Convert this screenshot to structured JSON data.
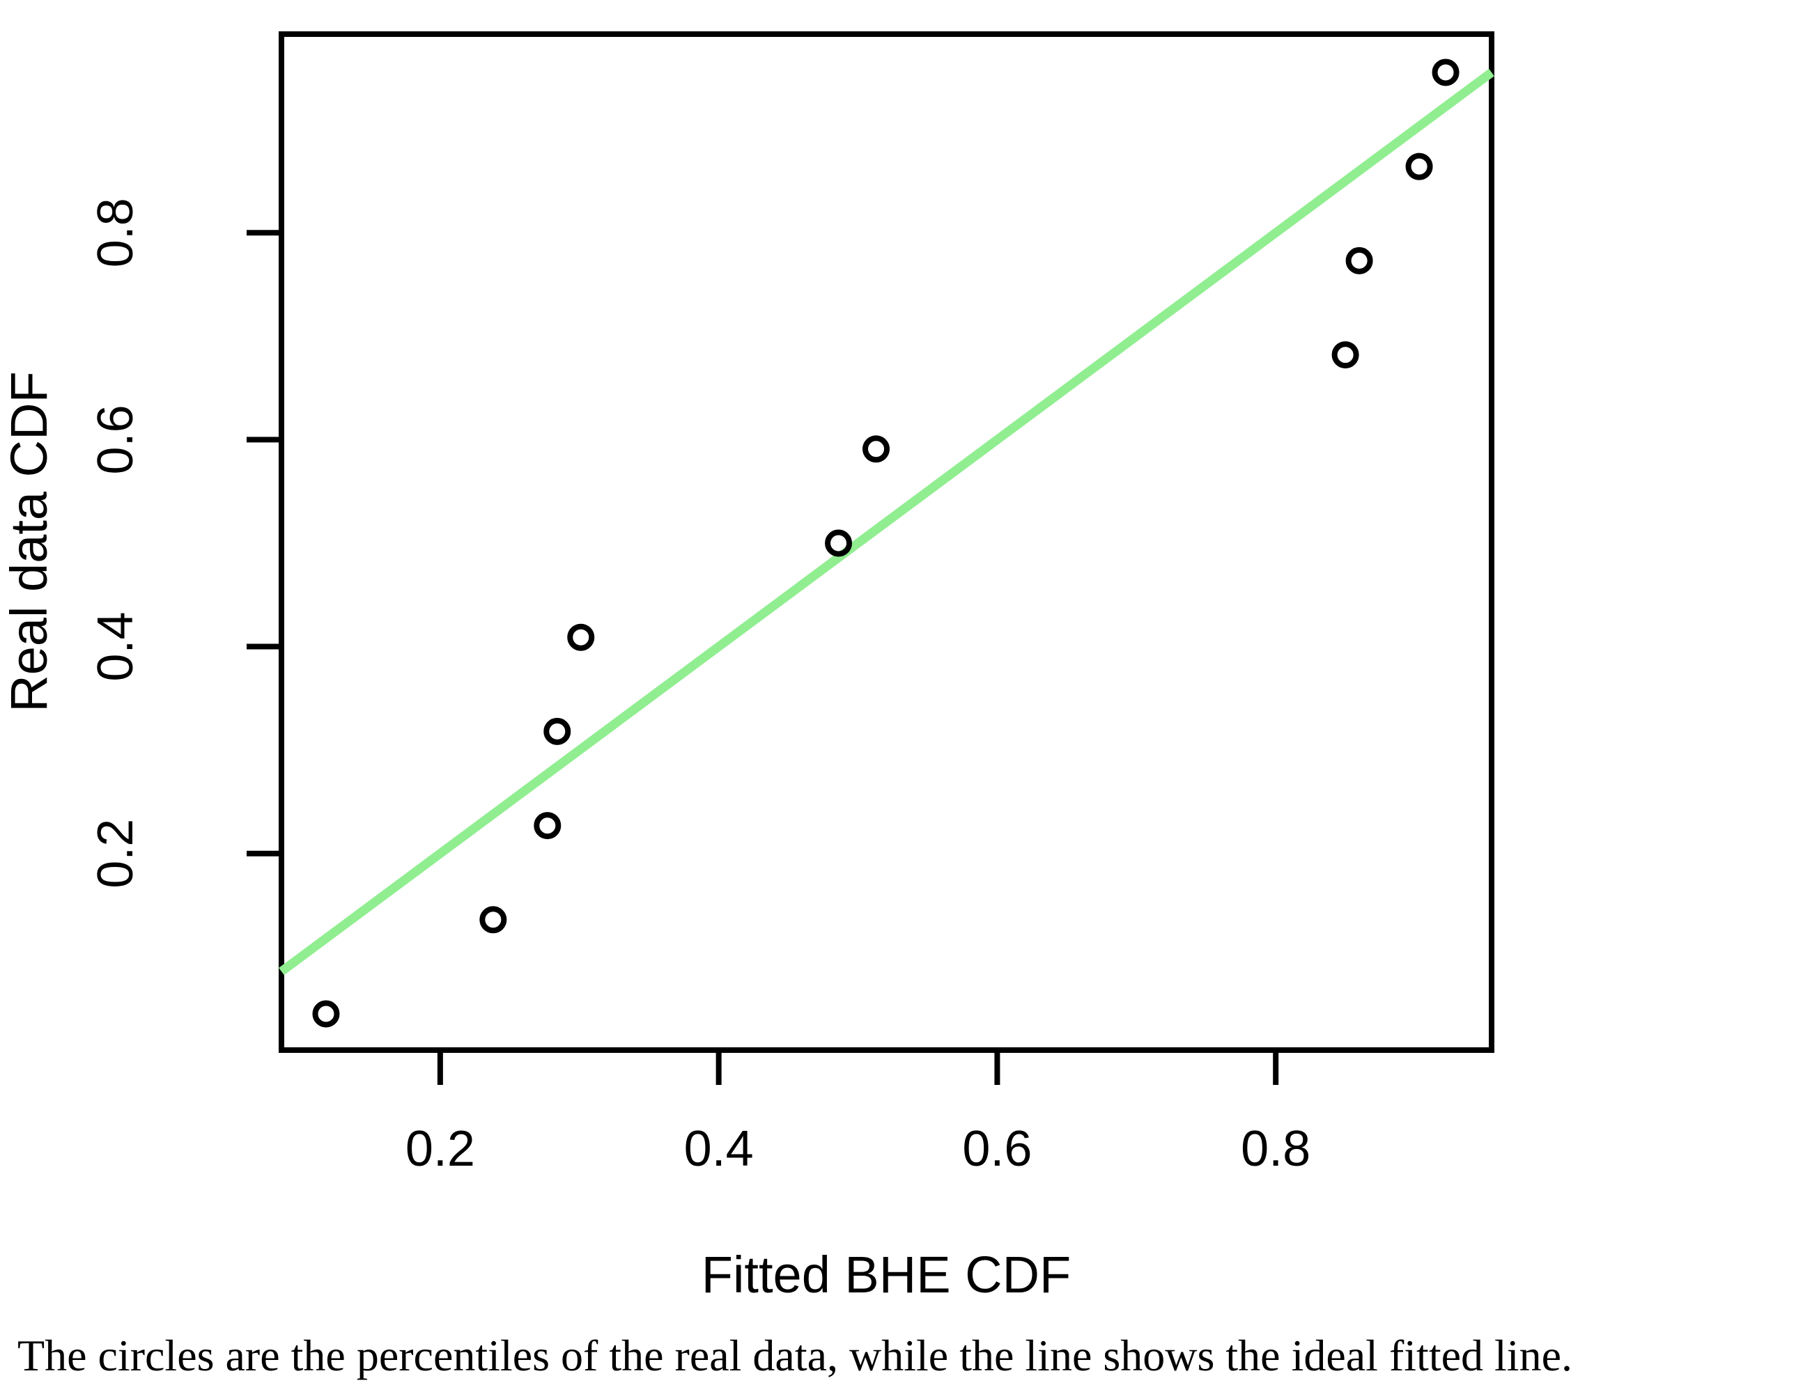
{
  "figure": {
    "background": "#ffffff",
    "axis_color": "#000000"
  },
  "chart_data": {
    "type": "scatter",
    "title": "",
    "xlabel": "Fitted BHE CDF",
    "ylabel": "Real data CDF",
    "caption": "The circles are the percentiles of the real data, while the line shows the ideal fitted line.",
    "xlim": [
      0.086,
      0.955
    ],
    "ylim": [
      0.01,
      0.992
    ],
    "x_ticks": [
      0.2,
      0.4,
      0.6,
      0.8
    ],
    "y_ticks": [
      0.2,
      0.4,
      0.6,
      0.8
    ],
    "grid": false,
    "legend": false,
    "series": [
      {
        "name": "real-data-percentiles",
        "marker": "open-circle",
        "color": "#000000",
        "points": [
          [
            0.118,
            0.045
          ],
          [
            0.238,
            0.136
          ],
          [
            0.277,
            0.227
          ],
          [
            0.284,
            0.318
          ],
          [
            0.301,
            0.409
          ],
          [
            0.486,
            0.5
          ],
          [
            0.513,
            0.591
          ],
          [
            0.85,
            0.682
          ],
          [
            0.86,
            0.773
          ],
          [
            0.903,
            0.864
          ],
          [
            0.922,
            0.955
          ]
        ]
      }
    ],
    "line": {
      "name": "ideal-fitted-line",
      "color": "#90EE90",
      "x1": 0.086,
      "y1": 0.086,
      "x2": 0.955,
      "y2": 0.955
    }
  }
}
